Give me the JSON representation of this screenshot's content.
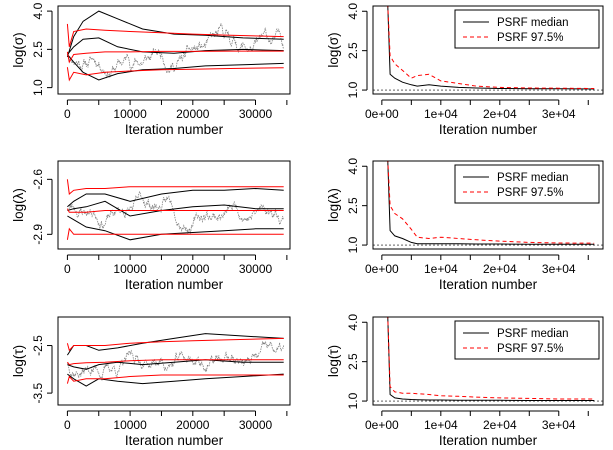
{
  "chart_data": [
    {
      "type": "line",
      "ylabel": "log(σ)",
      "xlabel": "Iteration number",
      "xlim": [
        -1500,
        35500
      ],
      "ylim": [
        0.75,
        4.2
      ],
      "xticks": [
        0,
        10000,
        20000,
        30000
      ],
      "xtick_labels": [
        "0",
        "10000",
        "20000",
        "30000"
      ],
      "yticks": [
        1.0,
        2.5,
        4.0
      ],
      "ytick_labels": [
        "1.0",
        "2.5",
        "4.0"
      ],
      "trace": {
        "color": "#7f7f7f",
        "base": 2.35,
        "amp": 0.7,
        "seed": 11,
        "series": [
          {
            "name": "",
            "color": "#000000",
            "x": [
              0,
              1000,
              2500,
              5000,
              8000,
              12000,
              17000,
              22000,
              28000,
              34500
            ],
            "y": [
              2.2,
              3.0,
              3.6,
              4.0,
              3.7,
              3.3,
              3.1,
              3.05,
              2.95,
              2.9
            ]
          },
          {
            "name": "",
            "color": "#000000",
            "x": [
              0,
              1000,
              2500,
              5000,
              8000,
              12000,
              17000,
              22000,
              28000,
              34500
            ],
            "y": [
              2.3,
              2.0,
              1.6,
              1.3,
              1.55,
              1.7,
              1.75,
              1.85,
              1.9,
              1.95
            ]
          },
          {
            "name": "",
            "color": "#000000",
            "x": [
              0,
              1000,
              2500,
              5000,
              8000,
              12000,
              17000,
              22000,
              28000,
              34500
            ],
            "y": [
              2.3,
              2.6,
              2.9,
              2.95,
              2.6,
              2.4,
              2.35,
              2.45,
              2.5,
              2.45
            ]
          },
          {
            "name": "",
            "color": "#ff0000",
            "x": [
              0,
              300,
              1000,
              3000,
              6000,
              10000,
              15000,
              20000,
              26000,
              34500
            ],
            "y": [
              3.5,
              2.6,
              3.2,
              3.3,
              3.25,
              3.2,
              3.15,
              3.1,
              3.05,
              3.0
            ]
          },
          {
            "name": "",
            "color": "#ff0000",
            "x": [
              0,
              300,
              1000,
              3000,
              6000,
              10000,
              15000,
              20000,
              26000,
              34500
            ],
            "y": [
              1.8,
              1.3,
              1.6,
              1.5,
              1.6,
              1.65,
              1.7,
              1.72,
              1.75,
              1.78
            ]
          },
          {
            "name": "",
            "color": "#ff0000",
            "x": [
              0,
              300,
              1000,
              3000,
              6000,
              10000,
              15000,
              20000,
              26000,
              34500
            ],
            "y": [
              2.4,
              2.0,
              2.3,
              2.35,
              2.4,
              2.4,
              2.42,
              2.42,
              2.43,
              2.43
            ]
          }
        ]
      }
    },
    {
      "type": "line",
      "ylabel": "log(σ)",
      "xlabel": "Iteration number",
      "xlim": [
        -1500,
        37500
      ],
      "ylim": [
        0.85,
        4.2
      ],
      "xticks": [
        0,
        10000,
        20000,
        30000
      ],
      "xtick_labels": [
        "0e+00",
        "1e+04",
        "2e+04",
        "3e+04"
      ],
      "yticks": [
        1.0,
        2.5,
        4.0
      ],
      "ytick_labels": [
        "1.0",
        "2.5",
        "4.0"
      ],
      "legend": {
        "position": "top-right",
        "entries": [
          "PSRF median",
          "PSRF 97.5%"
        ]
      },
      "series": [
        {
          "name": "PSRF median",
          "color": "#000000",
          "dash": "none",
          "x": [
            1000,
            1400,
            2200,
            3500,
            5000,
            6000,
            8000,
            10000,
            13000,
            16000,
            20000,
            25000,
            30000,
            36000
          ],
          "y": [
            4.3,
            1.6,
            1.45,
            1.3,
            1.2,
            1.15,
            1.2,
            1.15,
            1.1,
            1.08,
            1.06,
            1.05,
            1.05,
            1.04
          ]
        },
        {
          "name": "PSRF 97.5%",
          "color": "#ff0000",
          "dash": "4,3",
          "x": [
            1000,
            1400,
            2200,
            3500,
            5000,
            6000,
            8000,
            10000,
            13000,
            16000,
            20000,
            25000,
            30000,
            36000
          ],
          "y": [
            4.3,
            2.3,
            2.0,
            1.75,
            1.45,
            1.55,
            1.6,
            1.35,
            1.25,
            1.15,
            1.1,
            1.08,
            1.07,
            1.06
          ]
        }
      ]
    },
    {
      "type": "line",
      "ylabel": "log(λ)",
      "xlabel": "Iteration number",
      "xlim": [
        -1500,
        35500
      ],
      "ylim": [
        -2.98,
        -2.5
      ],
      "xticks": [
        0,
        10000,
        20000,
        30000
      ],
      "xtick_labels": [
        "0",
        "10000",
        "20000",
        "30000"
      ],
      "yticks": [
        -2.6,
        -2.9
      ],
      "ytick_labels": [
        "-2.6",
        "-2.9"
      ],
      "trace": {
        "color": "#7f7f7f",
        "base": -2.75,
        "amp": 0.09,
        "seed": 23,
        "series": [
          {
            "name": "",
            "color": "#000000",
            "x": [
              0,
              1000,
              3000,
              6000,
              10000,
              15000,
              20000,
              25000,
              30000,
              34500
            ],
            "y": [
              -2.75,
              -2.72,
              -2.68,
              -2.68,
              -2.72,
              -2.68,
              -2.66,
              -2.66,
              -2.65,
              -2.66
            ]
          },
          {
            "name": "",
            "color": "#000000",
            "x": [
              0,
              1000,
              3000,
              6000,
              10000,
              15000,
              20000,
              25000,
              30000,
              34500
            ],
            "y": [
              -2.8,
              -2.82,
              -2.86,
              -2.88,
              -2.93,
              -2.9,
              -2.89,
              -2.88,
              -2.87,
              -2.87
            ]
          },
          {
            "name": "",
            "color": "#000000",
            "x": [
              0,
              1000,
              3000,
              6000,
              10000,
              15000,
              20000,
              25000,
              30000,
              34500
            ],
            "y": [
              -2.77,
              -2.76,
              -2.75,
              -2.72,
              -2.8,
              -2.77,
              -2.75,
              -2.74,
              -2.76,
              -2.76
            ]
          },
          {
            "name": "",
            "color": "#ff0000",
            "x": [
              0,
              300,
              1000,
              3000,
              6000,
              10000,
              15000,
              20000,
              26000,
              34500
            ],
            "y": [
              -2.6,
              -2.68,
              -2.66,
              -2.65,
              -2.65,
              -2.64,
              -2.64,
              -2.64,
              -2.64,
              -2.64
            ]
          },
          {
            "name": "",
            "color": "#ff0000",
            "x": [
              0,
              300,
              1000,
              3000,
              6000,
              10000,
              15000,
              20000,
              26000,
              34500
            ],
            "y": [
              -2.93,
              -2.87,
              -2.9,
              -2.9,
              -2.9,
              -2.9,
              -2.9,
              -2.9,
              -2.9,
              -2.9
            ]
          },
          {
            "name": "",
            "color": "#ff0000",
            "x": [
              0,
              300,
              1000,
              3000,
              6000,
              10000,
              15000,
              20000,
              26000,
              34500
            ],
            "y": [
              -2.76,
              -2.78,
              -2.78,
              -2.78,
              -2.77,
              -2.77,
              -2.77,
              -2.77,
              -2.77,
              -2.77
            ]
          }
        ]
      }
    },
    {
      "type": "line",
      "ylabel": "log(λ)",
      "xlabel": "Iteration number",
      "xlim": [
        -1500,
        37500
      ],
      "ylim": [
        0.85,
        4.2
      ],
      "xticks": [
        0,
        10000,
        20000,
        30000
      ],
      "xtick_labels": [
        "0e+00",
        "1e+04",
        "2e+04",
        "3e+04"
      ],
      "yticks": [
        1.0,
        2.5,
        4.0
      ],
      "ytick_labels": [
        "1.0",
        "2.5",
        "4.0"
      ],
      "legend": {
        "position": "top-right",
        "entries": [
          "PSRF median",
          "PSRF 97.5%"
        ]
      },
      "series": [
        {
          "name": "PSRF median",
          "color": "#000000",
          "dash": "none",
          "x": [
            1000,
            1400,
            2200,
            3500,
            5000,
            6000,
            8000,
            10000,
            13000,
            16000,
            20000,
            25000,
            30000,
            36000
          ],
          "y": [
            4.3,
            1.55,
            1.35,
            1.25,
            1.1,
            1.05,
            1.05,
            1.05,
            1.05,
            1.04,
            1.04,
            1.03,
            1.03,
            1.03
          ]
        },
        {
          "name": "PSRF 97.5%",
          "color": "#ff0000",
          "dash": "4,3",
          "x": [
            1000,
            1400,
            2200,
            3500,
            5000,
            6000,
            8000,
            10000,
            13000,
            16000,
            20000,
            25000,
            30000,
            36000
          ],
          "y": [
            4.3,
            2.5,
            2.2,
            2.0,
            1.6,
            1.3,
            1.25,
            1.3,
            1.25,
            1.2,
            1.15,
            1.1,
            1.08,
            1.07
          ]
        }
      ]
    },
    {
      "type": "line",
      "ylabel": "log(τ)",
      "xlabel": "Iteration number",
      "xlim": [
        -1500,
        35500
      ],
      "ylim": [
        -3.75,
        -1.9
      ],
      "xticks": [
        0,
        10000,
        20000,
        30000
      ],
      "xtick_labels": [
        "0",
        "10000",
        "20000",
        "30000"
      ],
      "yticks": [
        -2.5,
        -3.5
      ],
      "ytick_labels": [
        "-2.5",
        "-3.5"
      ],
      "trace": {
        "color": "#7f7f7f",
        "base": -2.85,
        "amp": 0.35,
        "seed": 37,
        "series": [
          {
            "name": "",
            "color": "#000000",
            "x": [
              0,
              1000,
              3000,
              5000,
              8000,
              12000,
              17000,
              22000,
              28000,
              34500
            ],
            "y": [
              -2.7,
              -2.5,
              -2.5,
              -2.6,
              -2.55,
              -2.45,
              -2.35,
              -2.25,
              -2.3,
              -2.35
            ]
          },
          {
            "name": "",
            "color": "#000000",
            "x": [
              0,
              1000,
              3000,
              5000,
              8000,
              12000,
              17000,
              22000,
              28000,
              34500
            ],
            "y": [
              -3.1,
              -3.2,
              -3.35,
              -3.2,
              -3.25,
              -3.3,
              -3.25,
              -3.2,
              -3.15,
              -3.1
            ]
          },
          {
            "name": "",
            "color": "#000000",
            "x": [
              0,
              1000,
              3000,
              5000,
              8000,
              12000,
              17000,
              22000,
              28000,
              34500
            ],
            "y": [
              -2.9,
              -2.95,
              -3.0,
              -2.9,
              -2.85,
              -2.9,
              -2.85,
              -2.8,
              -2.85,
              -2.85
            ]
          },
          {
            "name": "",
            "color": "#ff0000",
            "x": [
              0,
              300,
              1000,
              3000,
              6000,
              10000,
              15000,
              20000,
              26000,
              34500
            ],
            "y": [
              -2.45,
              -2.6,
              -2.5,
              -2.5,
              -2.5,
              -2.45,
              -2.42,
              -2.4,
              -2.38,
              -2.35
            ]
          },
          {
            "name": "",
            "color": "#ff0000",
            "x": [
              0,
              300,
              1000,
              3000,
              6000,
              10000,
              15000,
              20000,
              26000,
              34500
            ],
            "y": [
              -3.3,
              -3.15,
              -3.25,
              -3.2,
              -3.2,
              -3.15,
              -3.12,
              -3.12,
              -3.12,
              -3.12
            ]
          },
          {
            "name": "",
            "color": "#ff0000",
            "x": [
              0,
              300,
              1000,
              3000,
              6000,
              10000,
              15000,
              20000,
              26000,
              34500
            ],
            "y": [
              -2.85,
              -2.9,
              -2.88,
              -2.86,
              -2.85,
              -2.82,
              -2.8,
              -2.8,
              -2.8,
              -2.8
            ]
          }
        ]
      }
    },
    {
      "type": "line",
      "ylabel": "log(τ)",
      "xlabel": "Iteration number",
      "xlim": [
        -1500,
        37500
      ],
      "ylim": [
        0.85,
        4.2
      ],
      "xticks": [
        0,
        10000,
        20000,
        30000
      ],
      "xtick_labels": [
        "0e+00",
        "1e+04",
        "2e+04",
        "3e+04"
      ],
      "yticks": [
        1.0,
        2.5,
        4.0
      ],
      "ytick_labels": [
        "1.0",
        "2.5",
        "4.0"
      ],
      "legend": {
        "position": "top-right",
        "entries": [
          "PSRF median",
          "PSRF 97.5%"
        ]
      },
      "series": [
        {
          "name": "PSRF median",
          "color": "#000000",
          "dash": "none",
          "x": [
            1000,
            1400,
            2200,
            3500,
            5000,
            6000,
            8000,
            10000,
            13000,
            16000,
            20000,
            25000,
            30000,
            36000
          ],
          "y": [
            4.3,
            1.25,
            1.12,
            1.08,
            1.06,
            1.05,
            1.04,
            1.04,
            1.03,
            1.03,
            1.03,
            1.02,
            1.02,
            1.02
          ]
        },
        {
          "name": "PSRF 97.5%",
          "color": "#ff0000",
          "dash": "4,3",
          "x": [
            1000,
            1400,
            2200,
            3500,
            5000,
            6000,
            8000,
            10000,
            13000,
            16000,
            20000,
            25000,
            30000,
            36000
          ],
          "y": [
            4.3,
            1.55,
            1.35,
            1.3,
            1.3,
            1.28,
            1.25,
            1.2,
            1.18,
            1.15,
            1.12,
            1.1,
            1.08,
            1.08
          ]
        }
      ]
    }
  ]
}
